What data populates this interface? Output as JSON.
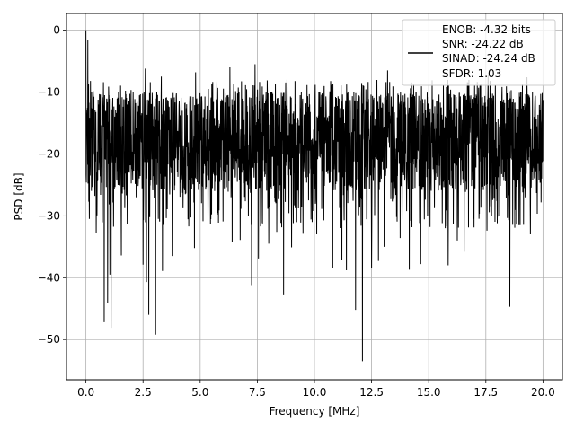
{
  "chart_data": {
    "type": "line",
    "title": "",
    "xlabel": "Frequency [MHz]",
    "ylabel": "PSD [dB]",
    "xlim": [
      -0.85,
      20.85
    ],
    "ylim": [
      -56.5,
      2.7
    ],
    "x_ticks": [
      0,
      2.5,
      5,
      7.5,
      10,
      12.5,
      15,
      17.5,
      20
    ],
    "x_tick_labels": [
      "0.0",
      "2.5",
      "5.0",
      "7.5",
      "10.0",
      "12.5",
      "15.0",
      "17.5",
      "20.0"
    ],
    "y_ticks": [
      0,
      -10,
      -20,
      -30,
      -40,
      -50
    ],
    "y_tick_labels": [
      "0",
      "−10",
      "−20",
      "−30",
      "−40",
      "−50"
    ],
    "grid": true,
    "legend_position": "top-right",
    "line_color": "#000000",
    "legend_lines": [
      "ENOB: -4.32 bits",
      "SNR: -24.22 dB",
      "SINAD: -24.24 dB",
      "SFDR: 1.03"
    ],
    "series": [
      {
        "x_range": [
          0,
          20
        ],
        "peaks": [
          [
            0.0,
            0.0
          ],
          [
            0.08,
            -1.5
          ],
          [
            0.15,
            -30.5
          ],
          [
            0.45,
            -32.8
          ],
          [
            0.8,
            -47.2
          ],
          [
            0.95,
            -44.1
          ],
          [
            1.05,
            -39.5
          ],
          [
            1.1,
            -48.1
          ],
          [
            1.55,
            -36.4
          ],
          [
            1.8,
            -24.7
          ],
          [
            2.2,
            -27.0
          ],
          [
            2.5,
            -37.9
          ],
          [
            2.65,
            -40.7
          ],
          [
            2.75,
            -46.0
          ],
          [
            3.05,
            -49.2
          ],
          [
            3.35,
            -38.9
          ],
          [
            3.8,
            -36.5
          ],
          [
            4.5,
            -31.7
          ],
          [
            4.75,
            -35.2
          ],
          [
            5.45,
            -31.4
          ],
          [
            5.8,
            -31.1
          ],
          [
            6.4,
            -34.2
          ],
          [
            6.75,
            -33.9
          ],
          [
            7.25,
            -41.2
          ],
          [
            7.55,
            -36.9
          ],
          [
            8.0,
            -34.5
          ],
          [
            8.35,
            -32.6
          ],
          [
            8.65,
            -42.7
          ],
          [
            9.0,
            -35.1
          ],
          [
            9.5,
            -32.9
          ],
          [
            9.9,
            -31.0
          ],
          [
            10.1,
            -33.0
          ],
          [
            10.8,
            -38.5
          ],
          [
            11.2,
            -37.2
          ],
          [
            11.4,
            -38.8
          ],
          [
            11.8,
            -45.2
          ],
          [
            12.1,
            -53.5
          ],
          [
            12.5,
            -38.5
          ],
          [
            12.8,
            -37.3
          ],
          [
            13.05,
            -35.0
          ],
          [
            13.75,
            -33.6
          ],
          [
            14.15,
            -38.7
          ],
          [
            14.65,
            -37.8
          ],
          [
            14.95,
            -30.1
          ],
          [
            15.85,
            -38.0
          ],
          [
            16.25,
            -34.0
          ],
          [
            16.55,
            -35.8
          ],
          [
            16.95,
            -30.5
          ],
          [
            17.55,
            -32.4
          ],
          [
            18.0,
            -31.2
          ],
          [
            18.55,
            -44.7
          ],
          [
            18.95,
            -31.5
          ],
          [
            19.45,
            -33.0
          ]
        ],
        "upper_peaks": [
          [
            0.2,
            -8.2
          ],
          [
            2.6,
            -6.2
          ],
          [
            3.3,
            -7.5
          ],
          [
            4.8,
            -6.8
          ],
          [
            6.3,
            -6.0
          ],
          [
            7.4,
            -5.5
          ],
          [
            9.0,
            -6.3
          ],
          [
            10.8,
            -5.5
          ],
          [
            13.2,
            -6.5
          ],
          [
            15.8,
            -7.0
          ],
          [
            17.6,
            -7.3
          ],
          [
            19.3,
            -7.6
          ]
        ]
      }
    ]
  }
}
